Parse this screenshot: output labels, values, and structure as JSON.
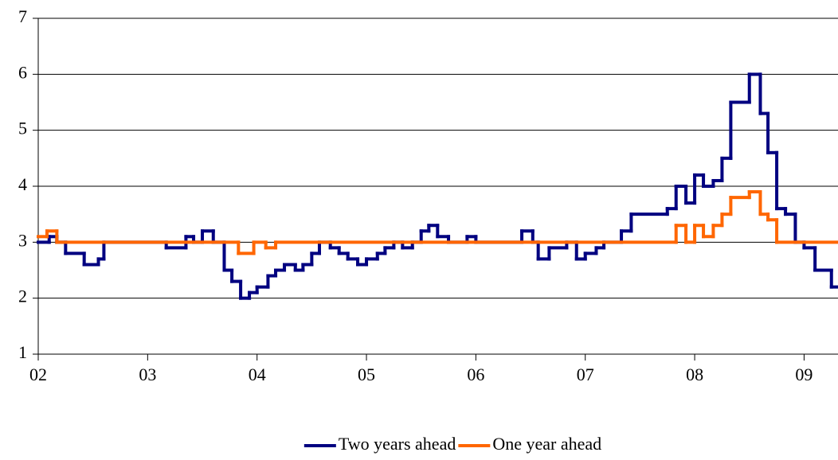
{
  "chart_data": {
    "type": "line",
    "step": true,
    "xlim": [
      2,
      9.31
    ],
    "xticks": [
      {
        "value": 2,
        "label": "02"
      },
      {
        "value": 3,
        "label": "03"
      },
      {
        "value": 4,
        "label": "04"
      },
      {
        "value": 5,
        "label": "05"
      },
      {
        "value": 6,
        "label": "06"
      },
      {
        "value": 7,
        "label": "07"
      },
      {
        "value": 8,
        "label": "08"
      },
      {
        "value": 9,
        "label": "09"
      }
    ],
    "ylim": [
      1,
      7
    ],
    "yticks": [
      1,
      2,
      3,
      4,
      5,
      6,
      7
    ],
    "grid": true,
    "legend": "bottom",
    "series": [
      {
        "name": "Two years ahead",
        "color": "#000080",
        "x": [
          2,
          2.1,
          2.17,
          2.25,
          2.42,
          2.55,
          2.6,
          3.17,
          3.35,
          3.42,
          3.5,
          3.6,
          3.7,
          3.77,
          3.85,
          3.93,
          4.0,
          4.1,
          4.17,
          4.25,
          4.35,
          4.42,
          4.5,
          4.57,
          4.67,
          4.75,
          4.83,
          4.92,
          5.0,
          5.1,
          5.17,
          5.25,
          5.33,
          5.42,
          5.5,
          5.57,
          5.65,
          5.75,
          5.92,
          6.0,
          6.42,
          6.52,
          6.57,
          6.67,
          6.83,
          6.92,
          7.0,
          7.1,
          7.17,
          7.33,
          7.42,
          7.75,
          7.83,
          7.92,
          8.0,
          8.08,
          8.17,
          8.25,
          8.33,
          8.5,
          8.6,
          8.67,
          8.75,
          8.83,
          8.92,
          9.0,
          9.1,
          9.25
        ],
        "values": [
          3.0,
          3.1,
          3.0,
          2.8,
          2.6,
          2.7,
          3.0,
          2.9,
          3.1,
          3.0,
          3.2,
          3.0,
          2.5,
          2.3,
          2.0,
          2.1,
          2.2,
          2.4,
          2.5,
          2.6,
          2.5,
          2.6,
          2.8,
          3.0,
          2.9,
          2.8,
          2.7,
          2.6,
          2.7,
          2.8,
          2.9,
          3.0,
          2.9,
          3.0,
          3.2,
          3.3,
          3.1,
          3.0,
          3.1,
          3.0,
          3.2,
          3.0,
          2.7,
          2.9,
          3.0,
          2.7,
          2.8,
          2.9,
          3.0,
          3.2,
          3.5,
          3.6,
          4.0,
          3.7,
          4.2,
          4.0,
          4.1,
          4.5,
          5.5,
          6.0,
          5.3,
          4.6,
          3.6,
          3.5,
          3.0,
          2.9,
          2.5,
          2.2
        ]
      },
      {
        "name": "One year ahead",
        "color": "#ff6600",
        "x": [
          2,
          2.08,
          2.17,
          3.83,
          3.97,
          4.08,
          4.17,
          7.83,
          7.92,
          8.0,
          8.08,
          8.17,
          8.25,
          8.33,
          8.5,
          8.6,
          8.67,
          8.75
        ],
        "values": [
          3.1,
          3.2,
          3.0,
          2.8,
          3.0,
          2.9,
          3.0,
          3.3,
          3.0,
          3.3,
          3.1,
          3.3,
          3.5,
          3.8,
          3.9,
          3.5,
          3.4,
          3.0
        ]
      }
    ]
  }
}
